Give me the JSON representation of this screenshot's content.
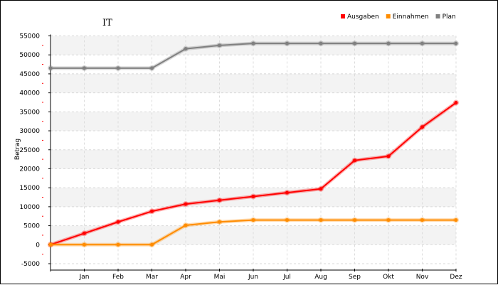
{
  "chart_data": {
    "type": "line",
    "title": "IT",
    "xlabel": "",
    "ylabel": "Betrag",
    "categories": [
      "",
      "Jan",
      "Feb",
      "Mar",
      "Apr",
      "Mai",
      "Jun",
      "Jul",
      "Aug",
      "Sep",
      "Okt",
      "Nov",
      "Dez"
    ],
    "ylim": [
      -5000,
      55000
    ],
    "yticks": [
      -5000,
      0,
      5000,
      10000,
      15000,
      20000,
      25000,
      30000,
      35000,
      40000,
      45000,
      50000,
      55000
    ],
    "grid": true,
    "legend_position": "top-right",
    "series": [
      {
        "name": "Ausgaben",
        "color": "#ff0000",
        "values": [
          0,
          3000,
          6000,
          8800,
          10700,
          11700,
          12700,
          13700,
          14700,
          22200,
          23300,
          31000,
          37400
        ]
      },
      {
        "name": "Einnahmen",
        "color": "#ff8c00",
        "values": [
          0,
          0,
          0,
          0,
          5100,
          6000,
          6500,
          6500,
          6500,
          6500,
          6500,
          6500,
          6500
        ]
      },
      {
        "name": "Plan",
        "color": "#808080",
        "values": [
          46500,
          46500,
          46500,
          46500,
          51600,
          52500,
          53000,
          53000,
          53000,
          53000,
          53000,
          53000,
          53000
        ]
      }
    ]
  }
}
